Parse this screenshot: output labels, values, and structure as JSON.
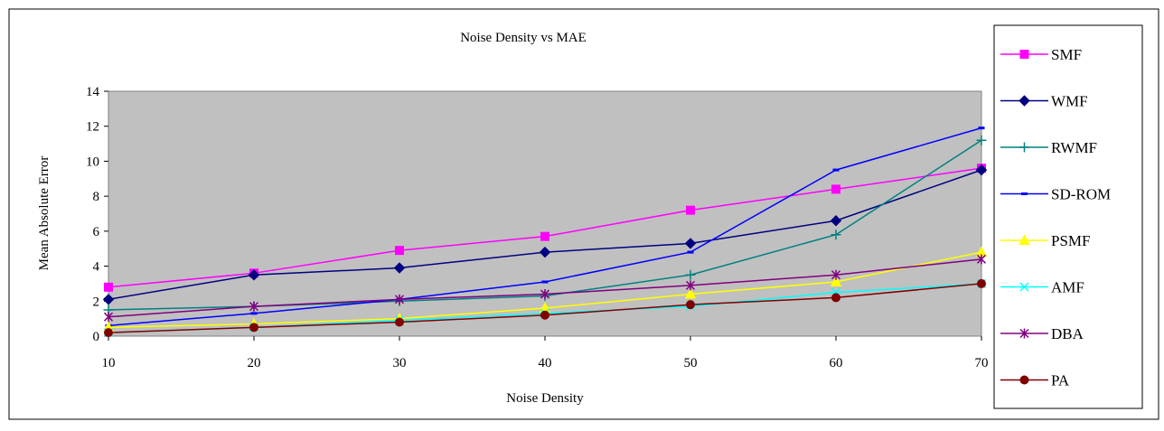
{
  "chart_data": {
    "type": "line",
    "title": "Noise Density vs MAE",
    "xlabel": "Noise Density",
    "ylabel": "Mean Absolute Error",
    "x": [
      10,
      20,
      30,
      40,
      50,
      60,
      70
    ],
    "xlim": [
      10,
      70
    ],
    "ylim": [
      0,
      14
    ],
    "yticks": [
      0,
      2,
      4,
      6,
      8,
      10,
      12,
      14
    ],
    "grid": false,
    "plot_background": "#c0c0c0",
    "legend_position": "right",
    "series": [
      {
        "name": "SMF",
        "color": "#ff00ff",
        "marker": "square",
        "values": [
          2.8,
          3.6,
          4.9,
          5.7,
          7.2,
          8.4,
          9.6
        ]
      },
      {
        "name": "WMF",
        "color": "#000080",
        "marker": "diamond",
        "values": [
          2.1,
          3.5,
          3.9,
          4.8,
          5.3,
          6.6,
          9.5
        ]
      },
      {
        "name": "RWMF",
        "color": "#008080",
        "marker": "plus",
        "values": [
          1.5,
          1.7,
          2.0,
          2.3,
          3.5,
          5.8,
          11.2
        ]
      },
      {
        "name": "SD-ROM",
        "color": "#0000ff",
        "marker": "dash",
        "values": [
          0.6,
          1.3,
          2.1,
          3.1,
          4.8,
          9.5,
          11.9
        ]
      },
      {
        "name": "PSMF",
        "color": "#ffff00",
        "marker": "triangle",
        "values": [
          0.5,
          0.7,
          1.0,
          1.6,
          2.4,
          3.1,
          4.8
        ]
      },
      {
        "name": "AMF",
        "color": "#00ffff",
        "marker": "x",
        "values": [
          0.2,
          0.5,
          0.9,
          1.3,
          1.7,
          2.5,
          3.0
        ]
      },
      {
        "name": "DBA",
        "color": "#800080",
        "marker": "star",
        "values": [
          1.1,
          1.7,
          2.1,
          2.4,
          2.9,
          3.5,
          4.4
        ]
      },
      {
        "name": "PA",
        "color": "#800000",
        "marker": "circle",
        "values": [
          0.2,
          0.5,
          0.8,
          1.2,
          1.8,
          2.2,
          3.0
        ]
      }
    ]
  }
}
